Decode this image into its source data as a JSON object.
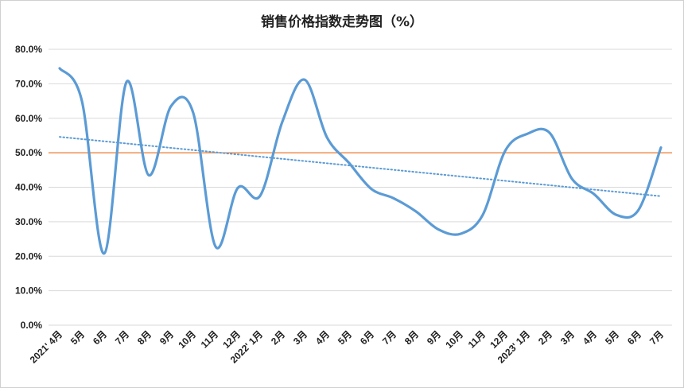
{
  "chart_data": {
    "type": "line",
    "title": "销售价格指数走势图（%）",
    "xlabel": "",
    "ylabel": "",
    "ylim": [
      0,
      80
    ],
    "yticks": [
      "0.0%",
      "10.0%",
      "20.0%",
      "30.0%",
      "40.0%",
      "50.0%",
      "60.0%",
      "70.0%",
      "80.0%"
    ],
    "categories": [
      "2021' 4月",
      "5月",
      "6月",
      "7月",
      "8月",
      "9月",
      "10月",
      "11月",
      "12月",
      "2022' 1月",
      "2月",
      "3月",
      "4月",
      "5月",
      "6月",
      "7月",
      "8月",
      "9月",
      "10月",
      "11月",
      "12月",
      "2023' 1月",
      "2月",
      "3月",
      "4月",
      "5月",
      "6月",
      "7月"
    ],
    "series": [
      {
        "values": [
          74.5,
          65.0,
          20.8,
          70.5,
          43.5,
          63.5,
          61.5,
          22.8,
          39.8,
          37.5,
          59.0,
          71.2,
          54.5,
          47.0,
          39.5,
          36.8,
          33.0,
          27.8,
          26.5,
          32.0,
          50.5,
          55.5,
          55.8,
          42.5,
          38.0,
          32.0,
          33.5,
          51.5
        ],
        "color": "#5b9bd5"
      }
    ],
    "reference_line": {
      "value": 50,
      "color": "#ed7d31"
    },
    "trendline": {
      "start": 54.6,
      "end": 37.4,
      "color": "#5b9bd5",
      "style": "dotted"
    },
    "grid": true,
    "legend": "none"
  }
}
